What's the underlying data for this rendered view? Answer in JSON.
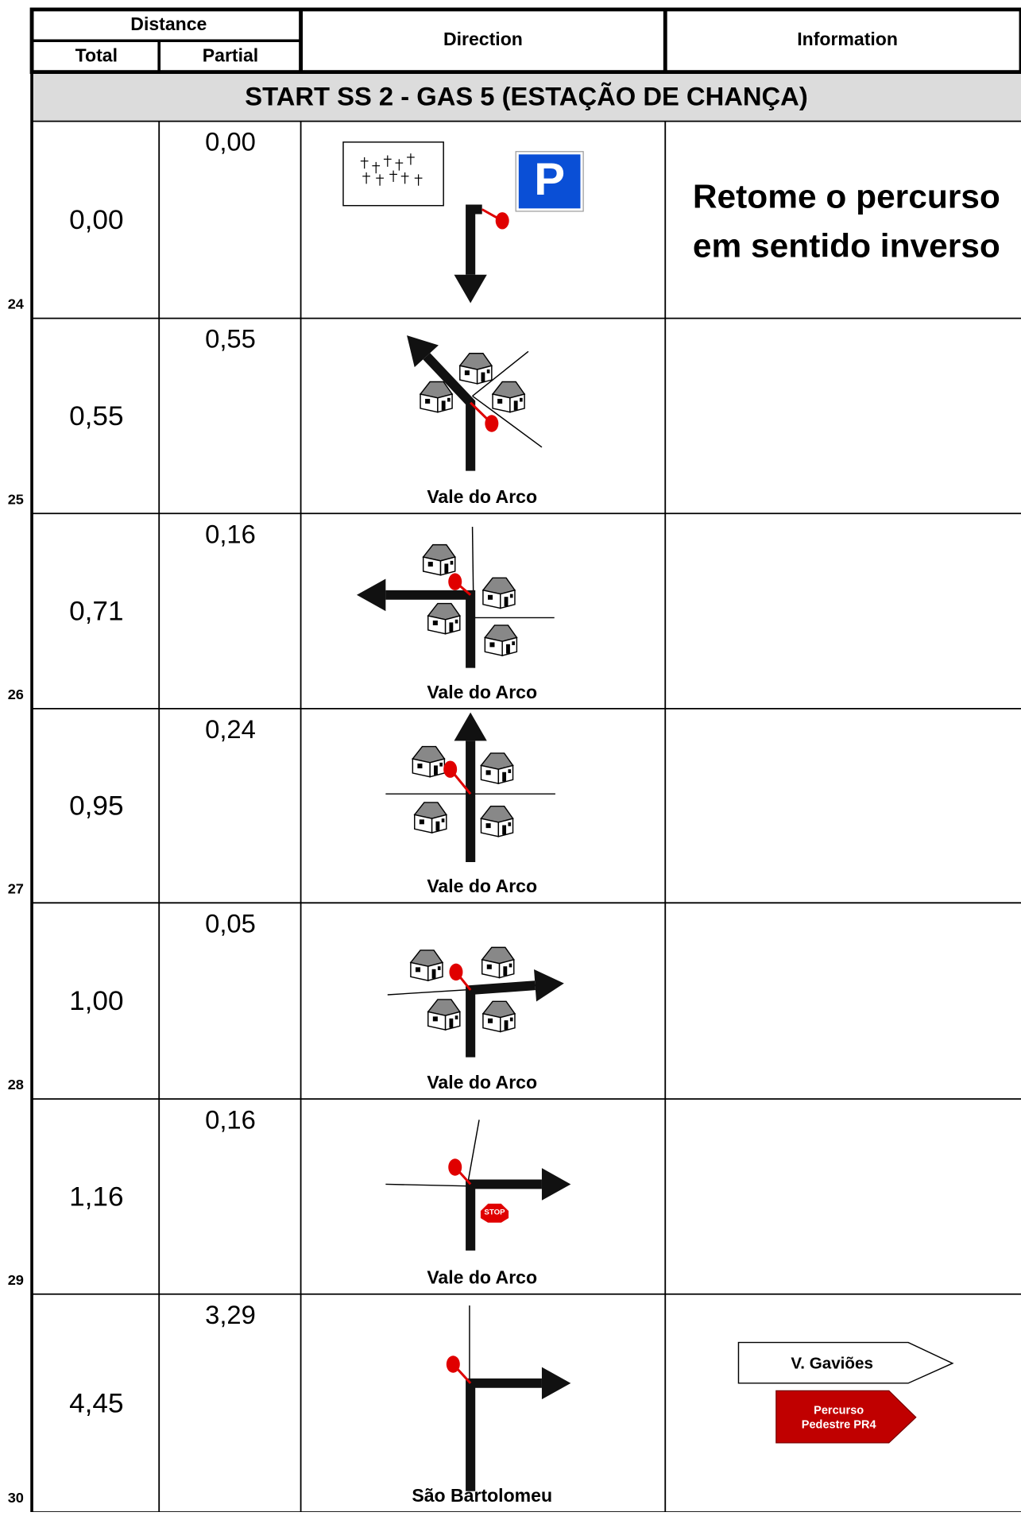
{
  "header": {
    "distance": "Distance",
    "total": "Total",
    "partial": "Partial",
    "direction": "Direction",
    "information": "Information"
  },
  "section_title": "START SS 2 - GAS 5 (ESTAÇÃO DE CHANÇA)",
  "rows": [
    {
      "number": "24",
      "total": "0,00",
      "partial": "0,00",
      "parking_sign": "P",
      "info_lines": [
        "Retome o percurso",
        "em sentido inverso"
      ]
    },
    {
      "number": "25",
      "total": "0,55",
      "partial": "0,55",
      "place": "Vale do Arco"
    },
    {
      "number": "26",
      "total": "0,71",
      "partial": "0,16",
      "place": "Vale do Arco"
    },
    {
      "number": "27",
      "total": "0,95",
      "partial": "0,24",
      "place": "Vale do Arco"
    },
    {
      "number": "28",
      "total": "1,00",
      "partial": "0,05",
      "place": "Vale do Arco"
    },
    {
      "number": "29",
      "total": "1,16",
      "partial": "0,16",
      "stop_sign": "STOP",
      "place": "Vale do Arco"
    },
    {
      "number": "30",
      "total": "4,45",
      "partial": "3,29",
      "place": "São Bartolomeu",
      "signs": [
        "V. Gaviões",
        "Percurso Pedestre PR4"
      ]
    }
  ]
}
